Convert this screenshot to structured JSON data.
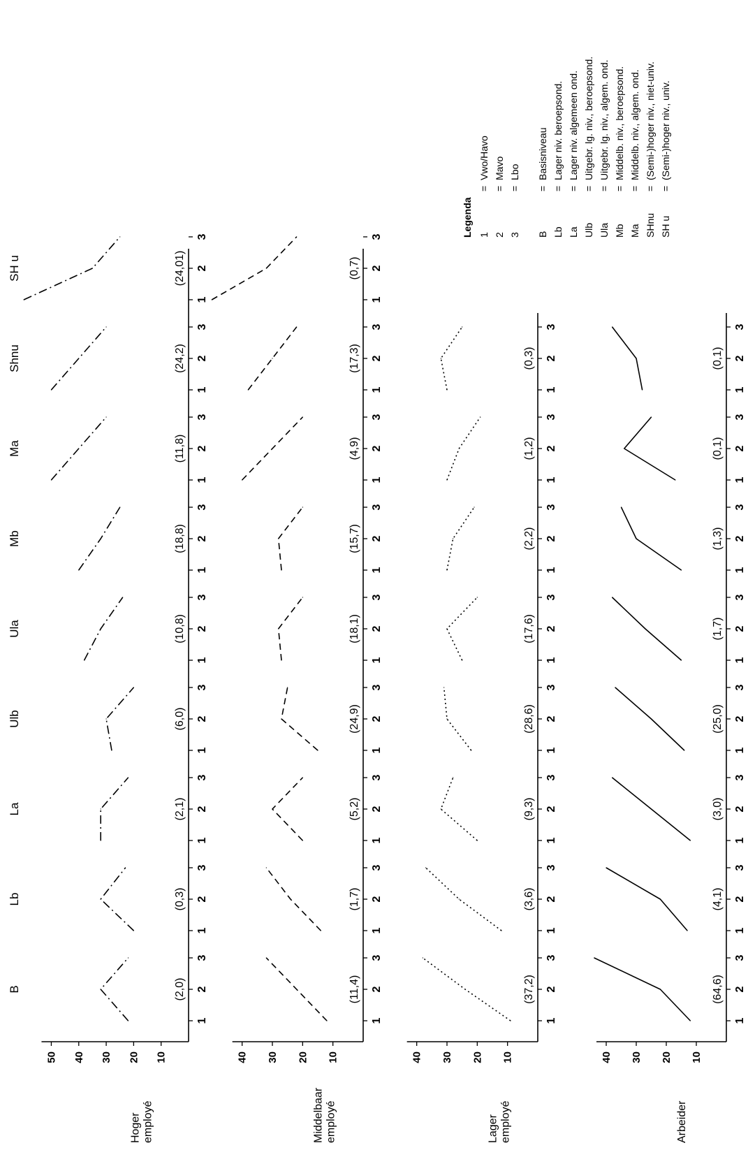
{
  "chart_data": {
    "type": "line",
    "x_tick_labels": [
      "1",
      "2",
      "3"
    ],
    "group_codes": [
      "B",
      "Lb",
      "La",
      "Ulb",
      "Ula",
      "Mb",
      "Ma",
      "Shnu",
      "SH u"
    ],
    "panels": [
      {
        "row_label_1": "Hoger",
        "row_label_2": "employé",
        "y_ticks": [
          10,
          20,
          30,
          40,
          50
        ],
        "ylim": [
          0,
          58
        ],
        "line_style": "dashdot",
        "group_labels": [
          "B",
          "Lb",
          "La",
          "Ulb",
          "Ula",
          "Mb",
          "Ma",
          "Shnu",
          "SH u"
        ],
        "groups": [
          {
            "code": "B",
            "pct_label": "(2,0)",
            "values": [
              22,
              32,
              22
            ]
          },
          {
            "code": "Lb",
            "pct_label": "(0,3)",
            "values": [
              20,
              32,
              23
            ]
          },
          {
            "code": "La",
            "pct_label": "(2,1)",
            "values": [
              32,
              32,
              22
            ]
          },
          {
            "code": "Ulb",
            "pct_label": "(6,0)",
            "values": [
              28,
              30,
              20
            ]
          },
          {
            "code": "Ula",
            "pct_label": "(10,8)",
            "values": [
              38,
              32,
              24
            ]
          },
          {
            "code": "Mb",
            "pct_label": "(18,8)",
            "values": [
              40,
              32,
              25
            ]
          },
          {
            "code": "Ma",
            "pct_label": "(11,8)",
            "values": [
              50,
              40,
              30
            ]
          },
          {
            "code": "Shnu",
            "pct_label": "(24,2)",
            "values": [
              50,
              40,
              30
            ]
          },
          {
            "code": "SH u",
            "pct_label": "(24,01)",
            "values": [
              60,
              35,
              25
            ]
          }
        ]
      },
      {
        "row_label_1": "Middelbaar",
        "row_label_2": "employé",
        "y_ticks": [
          10,
          20,
          30,
          40
        ],
        "ylim": [
          0,
          45
        ],
        "line_style": "dashed",
        "group_labels": [],
        "groups": [
          {
            "code": "B",
            "pct_label": "(11,4)",
            "values": [
              12,
              22,
              32
            ]
          },
          {
            "code": "Lb",
            "pct_label": "(1,7)",
            "values": [
              14,
              24,
              32
            ]
          },
          {
            "code": "La",
            "pct_label": "(5,2)",
            "values": [
              20,
              30,
              20
            ]
          },
          {
            "code": "Ulb",
            "pct_label": "(24,9)",
            "values": [
              15,
              27,
              25
            ]
          },
          {
            "code": "Ula",
            "pct_label": "(18,1)",
            "values": [
              27,
              28,
              20
            ]
          },
          {
            "code": "Mb",
            "pct_label": "(15,7)",
            "values": [
              27,
              28,
              20
            ]
          },
          {
            "code": "Ma",
            "pct_label": "(4,9)",
            "values": [
              40,
              30,
              20
            ]
          },
          {
            "code": "Shnu",
            "pct_label": "(17,3)",
            "values": [
              38,
              30,
              22
            ]
          },
          {
            "code": "SH u",
            "pct_label": "(0,7)",
            "values": [
              50,
              32,
              22
            ]
          }
        ]
      },
      {
        "row_label_1": "Lager",
        "row_label_2": "employé",
        "y_ticks": [
          10,
          20,
          30,
          40
        ],
        "ylim": [
          0,
          45
        ],
        "line_style": "dotted",
        "group_labels": [],
        "groups": [
          {
            "code": "B",
            "pct_label": "(37,2)",
            "values": [
              9,
              24,
              38
            ]
          },
          {
            "code": "Lb",
            "pct_label": "(3,6)",
            "values": [
              12,
              26,
              37
            ]
          },
          {
            "code": "La",
            "pct_label": "(9,3)",
            "values": [
              20,
              32,
              28
            ]
          },
          {
            "code": "Ulb",
            "pct_label": "(28,6)",
            "values": [
              22,
              30,
              31
            ]
          },
          {
            "code": "Ula",
            "pct_label": "(17,6)",
            "values": [
              25,
              30,
              20
            ]
          },
          {
            "code": "Mb",
            "pct_label": "(2,2)",
            "values": [
              30,
              28,
              21
            ]
          },
          {
            "code": "Ma",
            "pct_label": "(1,2)",
            "values": [
              30,
              26,
              19
            ]
          },
          {
            "code": "Shnu",
            "pct_label": "(0,3)",
            "values": [
              30,
              32,
              25
            ]
          }
        ]
      },
      {
        "row_label_1": "Arbeider",
        "row_label_2": "",
        "y_ticks": [
          10,
          20,
          30,
          40
        ],
        "ylim": [
          0,
          50
        ],
        "line_style": "solid",
        "group_labels": [],
        "groups": [
          {
            "code": "B",
            "pct_label": "(64,6)",
            "values": [
              12,
              22,
              44
            ]
          },
          {
            "code": "Lb",
            "pct_label": "(4,1)",
            "values": [
              13,
              22,
              40
            ]
          },
          {
            "code": "La",
            "pct_label": "(3,0)",
            "values": [
              12,
              25,
              38
            ]
          },
          {
            "code": "Ulb",
            "pct_label": "(25,0)",
            "values": [
              14,
              25,
              37
            ]
          },
          {
            "code": "Ula",
            "pct_label": "(1,7)",
            "values": [
              15,
              27,
              38
            ]
          },
          {
            "code": "Mb",
            "pct_label": "(1,3)",
            "values": [
              15,
              30,
              35
            ]
          },
          {
            "code": "Ma",
            "pct_label": "(0,1)",
            "values": [
              17,
              34,
              25
            ]
          },
          {
            "code": "Shnu",
            "pct_label": "(0,1)",
            "values": [
              28,
              30,
              38
            ]
          }
        ]
      }
    ],
    "legend": {
      "title": "Legenda",
      "eq": "=",
      "x_items": [
        {
          "key": "1",
          "desc": "Vwo/Havo"
        },
        {
          "key": "2",
          "desc": "Mavo"
        },
        {
          "key": "3",
          "desc": "Lbo"
        }
      ],
      "group_items": [
        {
          "key": "B",
          "desc": "Basisniveau"
        },
        {
          "key": "Lb",
          "desc": "Lager niv. beroepsond."
        },
        {
          "key": "La",
          "desc": "Lager niv. algemeen ond."
        },
        {
          "key": "Ulb",
          "desc": "Uitgebr. lg. niv., beroepsond."
        },
        {
          "key": "Ula",
          "desc": "Uitgebr. lg. niv., algem. ond."
        },
        {
          "key": "Mb",
          "desc": "Middelb. niv., beroepsond."
        },
        {
          "key": "Ma",
          "desc": "Middelb. niv., algem. ond."
        },
        {
          "key": "SHnu",
          "desc": "(Semi-)hoger niv., niet-univ."
        },
        {
          "key": "SH u",
          "desc": "(Semi-)hoger niv., univ."
        }
      ]
    }
  }
}
